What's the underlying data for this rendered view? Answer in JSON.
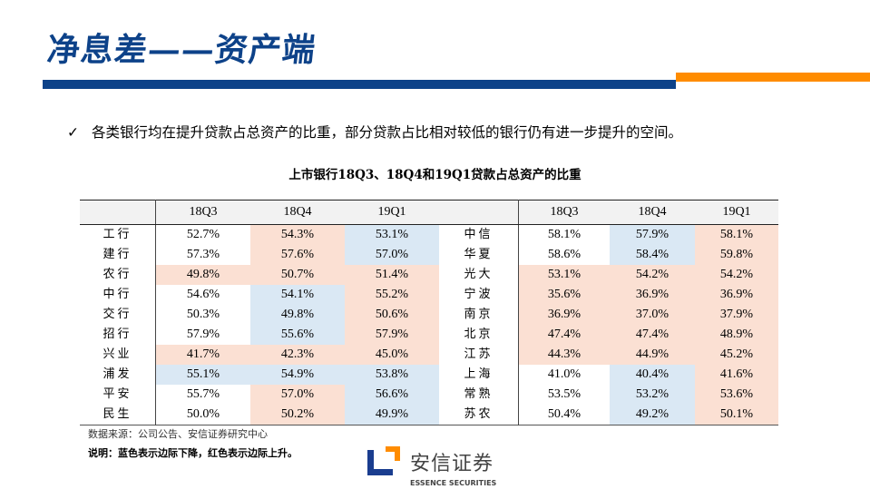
{
  "header": {
    "title": "净息差——资产端",
    "colors": {
      "blue": "#0d4289",
      "orange": "#ff8c00"
    }
  },
  "bullet": {
    "icon": "checkmark-icon",
    "mark": "✓",
    "text": "各类银行均在提升贷款占总资产的比重，部分贷款占比相对较低的银行仍有进一步提升的空间。"
  },
  "table": {
    "caption": "上市银行18Q3、18Q4和19Q1贷款占总资产的比重",
    "columns": [
      "18Q3",
      "18Q4",
      "19Q1"
    ],
    "legend_colors": {
      "r": "#fbe0d3",
      "b": "#dae8f4"
    },
    "left": [
      {
        "bank": "工行",
        "values": [
          "52.7%",
          "54.3%",
          "53.1%"
        ],
        "colors": [
          "",
          "r",
          "b"
        ]
      },
      {
        "bank": "建行",
        "values": [
          "57.3%",
          "57.6%",
          "57.0%"
        ],
        "colors": [
          "",
          "r",
          "b"
        ]
      },
      {
        "bank": "农行",
        "values": [
          "49.8%",
          "50.7%",
          "51.4%"
        ],
        "colors": [
          "r",
          "r",
          "r"
        ]
      },
      {
        "bank": "中行",
        "values": [
          "54.6%",
          "54.1%",
          "55.2%"
        ],
        "colors": [
          "",
          "b",
          "r"
        ]
      },
      {
        "bank": "交行",
        "values": [
          "50.3%",
          "49.8%",
          "50.6%"
        ],
        "colors": [
          "",
          "b",
          "r"
        ]
      },
      {
        "bank": "招行",
        "values": [
          "57.9%",
          "55.6%",
          "57.9%"
        ],
        "colors": [
          "",
          "b",
          "r"
        ]
      },
      {
        "bank": "兴业",
        "values": [
          "41.7%",
          "42.3%",
          "45.0%"
        ],
        "colors": [
          "r",
          "r",
          "r"
        ]
      },
      {
        "bank": "浦发",
        "values": [
          "55.1%",
          "54.9%",
          "53.8%"
        ],
        "colors": [
          "b",
          "b",
          "b"
        ]
      },
      {
        "bank": "平安",
        "values": [
          "55.7%",
          "57.0%",
          "56.6%"
        ],
        "colors": [
          "",
          "r",
          "b"
        ]
      },
      {
        "bank": "民生",
        "values": [
          "50.0%",
          "50.2%",
          "49.9%"
        ],
        "colors": [
          "",
          "r",
          "b"
        ]
      }
    ],
    "right": [
      {
        "bank": "中信",
        "values": [
          "58.1%",
          "57.9%",
          "58.1%"
        ],
        "colors": [
          "",
          "b",
          "r"
        ]
      },
      {
        "bank": "华夏",
        "values": [
          "58.6%",
          "58.4%",
          "59.8%"
        ],
        "colors": [
          "",
          "b",
          "r"
        ]
      },
      {
        "bank": "光大",
        "values": [
          "53.1%",
          "54.2%",
          "54.2%"
        ],
        "colors": [
          "r",
          "r",
          "r"
        ]
      },
      {
        "bank": "宁波",
        "values": [
          "35.6%",
          "36.9%",
          "36.9%"
        ],
        "colors": [
          "r",
          "r",
          "r"
        ]
      },
      {
        "bank": "南京",
        "values": [
          "36.9%",
          "37.0%",
          "37.9%"
        ],
        "colors": [
          "r",
          "r",
          "r"
        ]
      },
      {
        "bank": "北京",
        "values": [
          "47.4%",
          "47.4%",
          "48.9%"
        ],
        "colors": [
          "r",
          "r",
          "r"
        ]
      },
      {
        "bank": "江苏",
        "values": [
          "44.3%",
          "44.9%",
          "45.2%"
        ],
        "colors": [
          "r",
          "r",
          "r"
        ]
      },
      {
        "bank": "上海",
        "values": [
          "41.0%",
          "40.4%",
          "41.6%"
        ],
        "colors": [
          "",
          "b",
          "r"
        ]
      },
      {
        "bank": "常熟",
        "values": [
          "53.5%",
          "53.2%",
          "53.6%"
        ],
        "colors": [
          "",
          "b",
          "r"
        ]
      },
      {
        "bank": "苏农",
        "values": [
          "50.4%",
          "49.2%",
          "50.1%"
        ],
        "colors": [
          "",
          "b",
          "r"
        ]
      }
    ]
  },
  "footer": {
    "source": "数据来源：公司公告、安信证券研究中心",
    "note": "说明：蓝色表示边际下降，红色表示边际上升。",
    "logo_cn": "安信证券",
    "logo_en": "ESSENCE SECURITIES"
  }
}
